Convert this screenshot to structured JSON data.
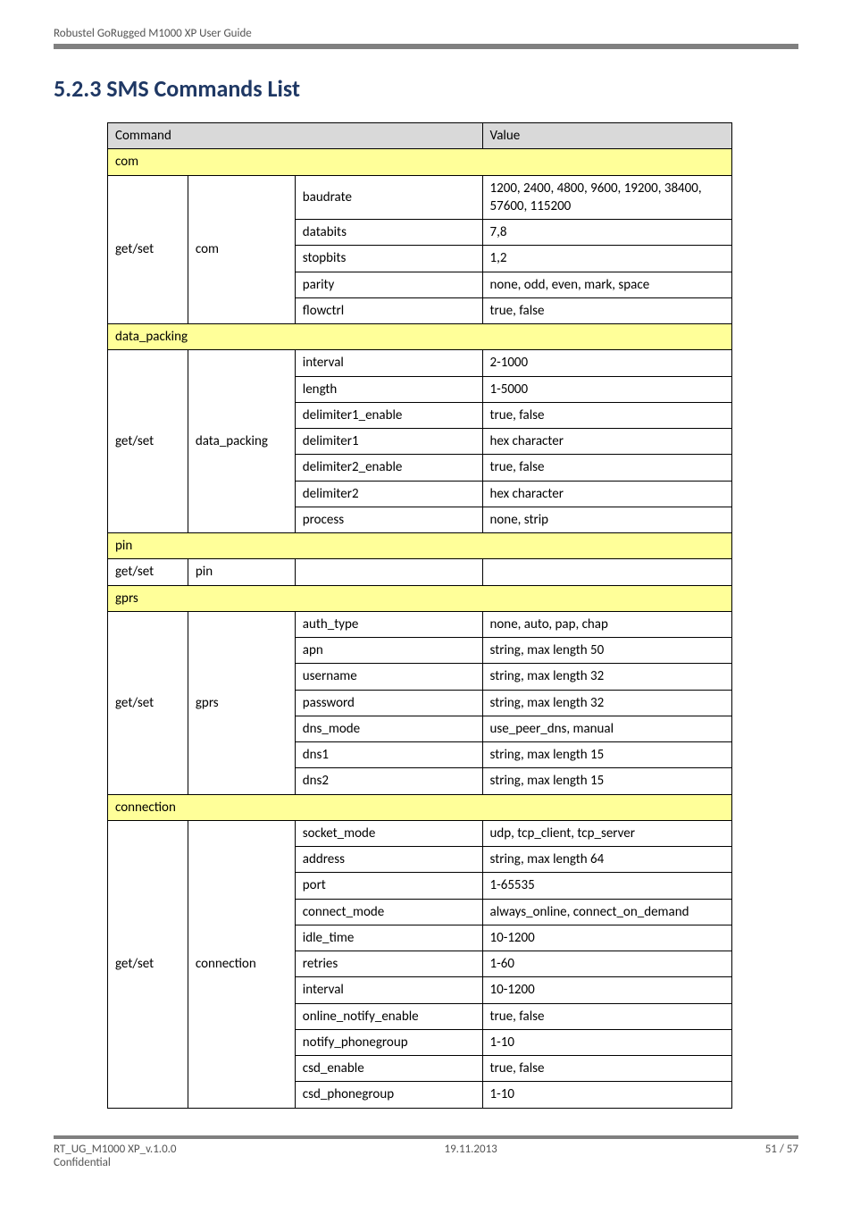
{
  "header": "Robustel GoRugged M1000 XP User Guide",
  "title": "5.2.3  SMS Commands List",
  "colHeaders": {
    "command": "Command",
    "value": "Value"
  },
  "sections": [
    {
      "name": "com",
      "group": "get/set",
      "sub": "com",
      "rows": [
        {
          "param": "baudrate",
          "value": "1200, 2400, 4800, 9600, 19200, 38400, 57600, 115200"
        },
        {
          "param": "databits",
          "value": "7,8"
        },
        {
          "param": "stopbits",
          "value": "1,2"
        },
        {
          "param": "parity",
          "value": "none, odd, even, mark, space"
        },
        {
          "param": "flowctrl",
          "value": "true, false"
        }
      ]
    },
    {
      "name": "data_packing",
      "group": "get/set",
      "sub": "data_packing",
      "rows": [
        {
          "param": "interval",
          "value": "2-1000"
        },
        {
          "param": "length",
          "value": "1-5000"
        },
        {
          "param": "delimiter1_enable",
          "value": "true, false"
        },
        {
          "param": "delimiter1",
          "value": "hex character"
        },
        {
          "param": "delimiter2_enable",
          "value": "true, false"
        },
        {
          "param": "delimiter2",
          "value": "hex character"
        },
        {
          "param": "process",
          "value": "none, strip"
        }
      ]
    },
    {
      "name": "pin",
      "group": "get/set",
      "sub": "pin",
      "rows": [
        {
          "param": "",
          "value": ""
        }
      ],
      "singleRow": true
    },
    {
      "name": "gprs",
      "group": "get/set",
      "sub": "gprs",
      "rows": [
        {
          "param": "auth_type",
          "value": "none, auto, pap, chap"
        },
        {
          "param": "apn",
          "value": "string, max length 50"
        },
        {
          "param": "username",
          "value": "string, max length 32"
        },
        {
          "param": "password",
          "value": "string, max length 32"
        },
        {
          "param": "dns_mode",
          "value": "use_peer_dns, manual"
        },
        {
          "param": "dns1",
          "value": "string, max length 15"
        },
        {
          "param": "dns2",
          "value": "string, max length 15"
        }
      ]
    },
    {
      "name": "connection",
      "group": "get/set",
      "sub": "connection",
      "rows": [
        {
          "param": "socket_mode",
          "value": "udp, tcp_client, tcp_server"
        },
        {
          "param": "address",
          "value": "string, max length 64"
        },
        {
          "param": "port",
          "value": "1-65535"
        },
        {
          "param": "connect_mode",
          "value": "always_online, connect_on_demand"
        },
        {
          "param": "idle_time",
          "value": "10-1200"
        },
        {
          "param": "retries",
          "value": "1-60"
        },
        {
          "param": "interval",
          "value": "10-1200"
        },
        {
          "param": "online_notify_enable",
          "value": "true, false"
        },
        {
          "param": "notify_phonegroup",
          "value": "1-10"
        },
        {
          "param": "csd_enable",
          "value": "true, false"
        },
        {
          "param": "csd_phonegroup",
          "value": "1-10"
        }
      ]
    }
  ],
  "footer": {
    "left": "RT_UG_M1000 XP_v.1.0.0",
    "leftSub": "Confidential",
    "center": "19.11.2013",
    "right": "51 / 57"
  }
}
